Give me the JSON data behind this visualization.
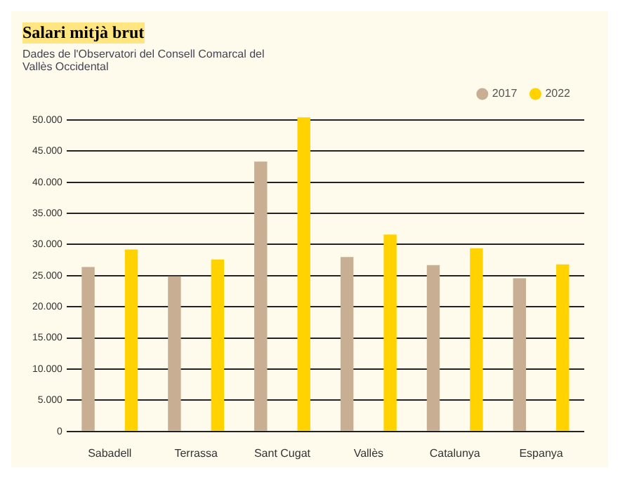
{
  "chart_data": {
    "type": "bar",
    "title": "Salari mitjà brut",
    "subtitle": "Dades de l'Observatori del Consell Comarcal del Vallès Occidental",
    "categories": [
      "Sabadell",
      "Terrassa",
      "Sant Cugat",
      "Vallès",
      "Catalunya",
      "Espanya"
    ],
    "series": [
      {
        "name": "2017",
        "color": "#c8ae93",
        "values": [
          26400,
          24900,
          43300,
          28000,
          26700,
          24600
        ]
      },
      {
        "name": "2022",
        "color": "#ffd200",
        "values": [
          29200,
          27600,
          50400,
          31600,
          29400,
          26800
        ]
      }
    ],
    "ylim": [
      0,
      51000
    ],
    "yticks": [
      0,
      {
        "value": 5000,
        "label": "5.000"
      },
      {
        "value": 10000,
        "label": "10.000"
      },
      {
        "value": 15000,
        "label": "15.000"
      },
      {
        "value": 20000,
        "label": "20.000"
      },
      {
        "value": 25000,
        "label": "25.000"
      },
      {
        "value": 30000,
        "label": "30.000"
      },
      {
        "value": 35000,
        "label": "35.000"
      },
      {
        "value": 40000,
        "label": "40.000"
      },
      {
        "value": 45000,
        "label": "45.000"
      },
      {
        "value": 50000,
        "label": "50.000"
      }
    ],
    "grid": "y",
    "legend": "top right"
  }
}
